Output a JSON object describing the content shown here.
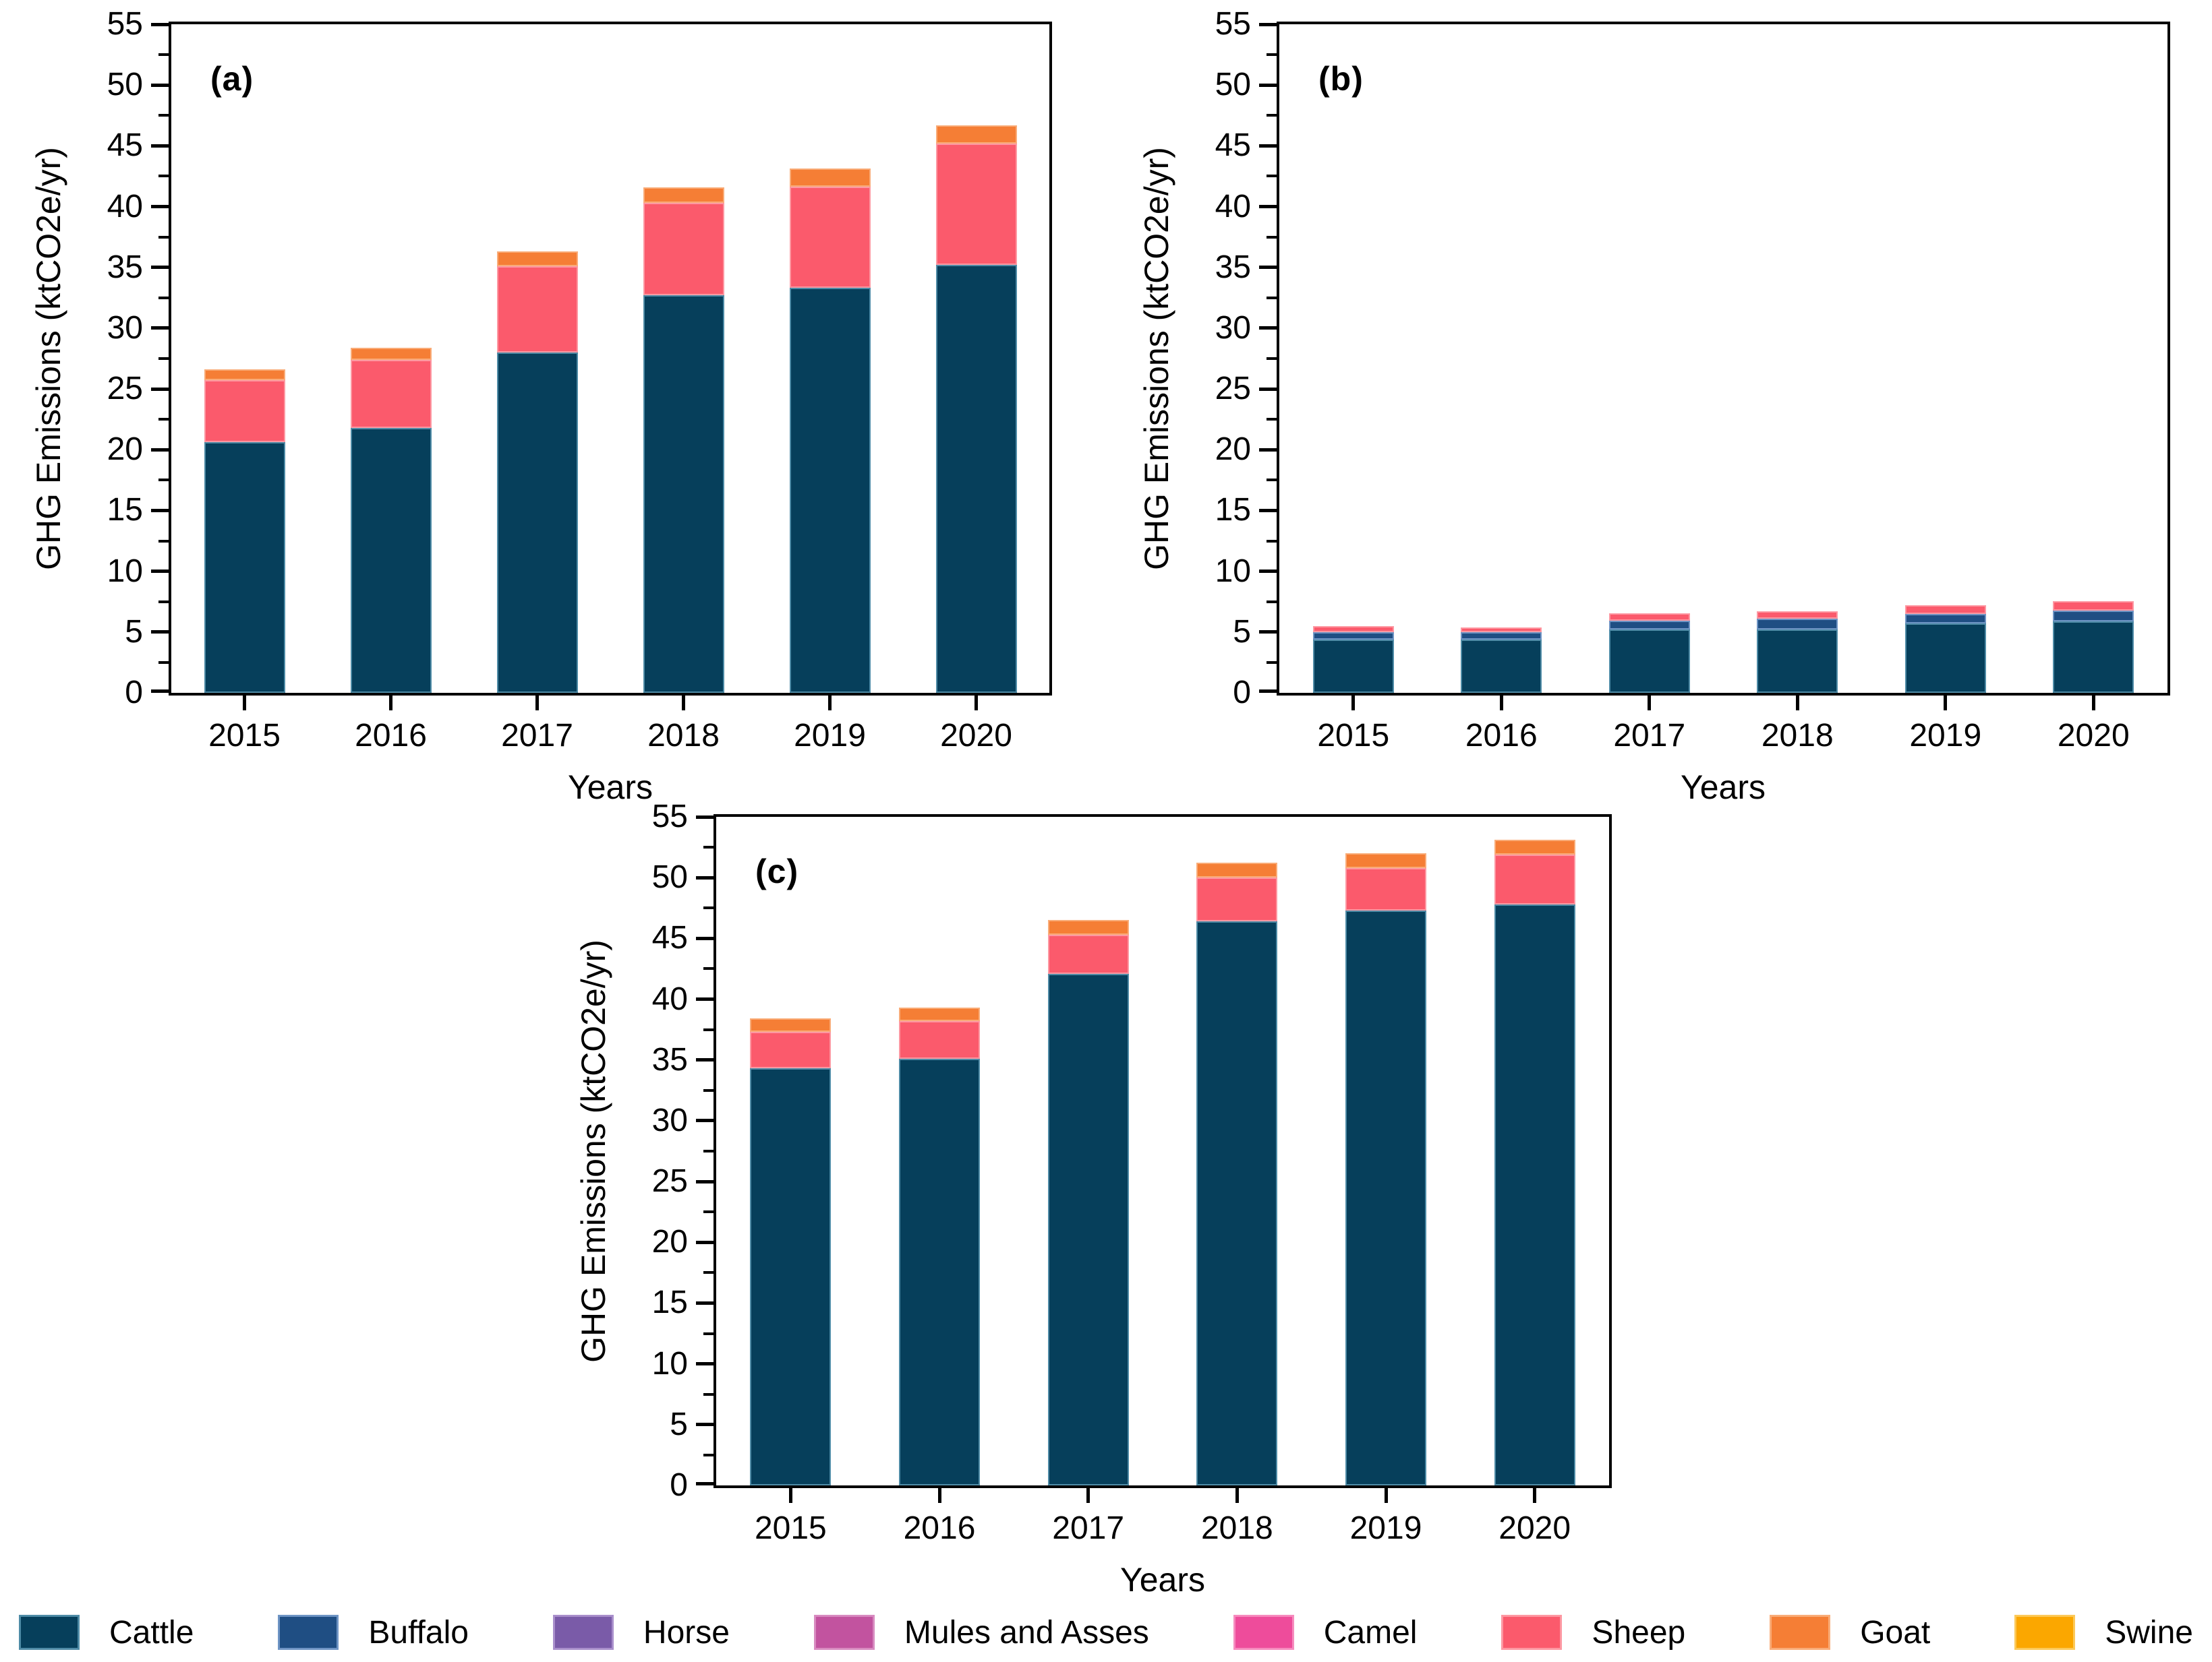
{
  "figure": {
    "ylabel": "GHG Emissions (ktCO2e/yr)",
    "xlabel": "Years",
    "years": [
      "2015",
      "2016",
      "2017",
      "2018",
      "2019",
      "2020"
    ],
    "yticks": [
      0,
      5,
      10,
      15,
      20,
      25,
      30,
      35,
      40,
      45,
      50,
      55
    ],
    "frame_color": "#000000",
    "background_color": "#ffffff"
  },
  "legend": [
    {
      "name": "Cattle",
      "color": "#063F5B",
      "border": "#4E8BA6"
    },
    {
      "name": "Buffalo",
      "color": "#1F4E83",
      "border": "#6E94C4"
    },
    {
      "name": "Horse",
      "color": "#7A5BA8",
      "border": "#A98FCB"
    },
    {
      "name": "Mules and Asses",
      "color": "#C2539F",
      "border": "#D88BC0"
    },
    {
      "name": "Camel",
      "color": "#EE4C9B",
      "border": "#F68BBE"
    },
    {
      "name": "Sheep",
      "color": "#FB5A6C",
      "border": "#FD98A2"
    },
    {
      "name": "Goat",
      "color": "#F57E35",
      "border": "#F9AC78"
    },
    {
      "name": "Swine",
      "color": "#FBA700",
      "border": "#FCC959"
    }
  ],
  "chart_data": [
    {
      "panel": "(a)",
      "type": "bar",
      "stacked": true,
      "categories": [
        "2015",
        "2016",
        "2017",
        "2018",
        "2019",
        "2020"
      ],
      "series": [
        {
          "name": "Cattle",
          "values": [
            20.6,
            21.8,
            28.0,
            32.7,
            33.3,
            35.2
          ]
        },
        {
          "name": "Sheep",
          "values": [
            5.1,
            5.6,
            7.1,
            7.6,
            8.3,
            10.0
          ]
        },
        {
          "name": "Goat",
          "values": [
            0.9,
            1.0,
            1.2,
            1.3,
            1.5,
            1.5
          ]
        }
      ],
      "totals": [
        26.6,
        28.4,
        36.3,
        41.6,
        43.1,
        46.7
      ],
      "title": "",
      "xlabel": "Years",
      "ylabel": "GHG Emissions (ktCO2e/yr)",
      "ylim": [
        0,
        55
      ],
      "grid": false,
      "legend_position": "bottom-shared"
    },
    {
      "panel": "(b)",
      "type": "bar",
      "stacked": true,
      "categories": [
        "2015",
        "2016",
        "2017",
        "2018",
        "2019",
        "2020"
      ],
      "series": [
        {
          "name": "Cattle",
          "values": [
            4.4,
            4.4,
            5.2,
            5.2,
            5.7,
            5.9
          ]
        },
        {
          "name": "Buffalo",
          "values": [
            0.6,
            0.6,
            0.7,
            0.9,
            0.8,
            0.9
          ]
        },
        {
          "name": "Sheep",
          "values": [
            0.5,
            0.4,
            0.6,
            0.6,
            0.7,
            0.8
          ]
        }
      ],
      "totals": [
        5.5,
        5.4,
        6.5,
        6.7,
        7.2,
        7.6
      ],
      "title": "",
      "xlabel": "Years",
      "ylabel": "GHG Emissions (ktCO2e/yr)",
      "ylim": [
        0,
        55
      ],
      "grid": false,
      "legend_position": "bottom-shared"
    },
    {
      "panel": "(c)",
      "type": "bar",
      "stacked": true,
      "categories": [
        "2015",
        "2016",
        "2017",
        "2018",
        "2019",
        "2020"
      ],
      "series": [
        {
          "name": "Cattle",
          "values": [
            34.3,
            35.1,
            42.1,
            46.4,
            47.3,
            47.8
          ]
        },
        {
          "name": "Sheep",
          "values": [
            3.0,
            3.1,
            3.2,
            3.6,
            3.5,
            4.1
          ]
        },
        {
          "name": "Goat",
          "values": [
            1.1,
            1.1,
            1.2,
            1.2,
            1.2,
            1.2
          ]
        }
      ],
      "totals": [
        38.4,
        39.3,
        46.5,
        51.2,
        52.0,
        53.1
      ],
      "title": "",
      "xlabel": "Years",
      "ylabel": "GHG Emissions (ktCO2e/yr)",
      "ylim": [
        0,
        55
      ],
      "grid": false,
      "legend_position": "bottom-shared"
    }
  ]
}
